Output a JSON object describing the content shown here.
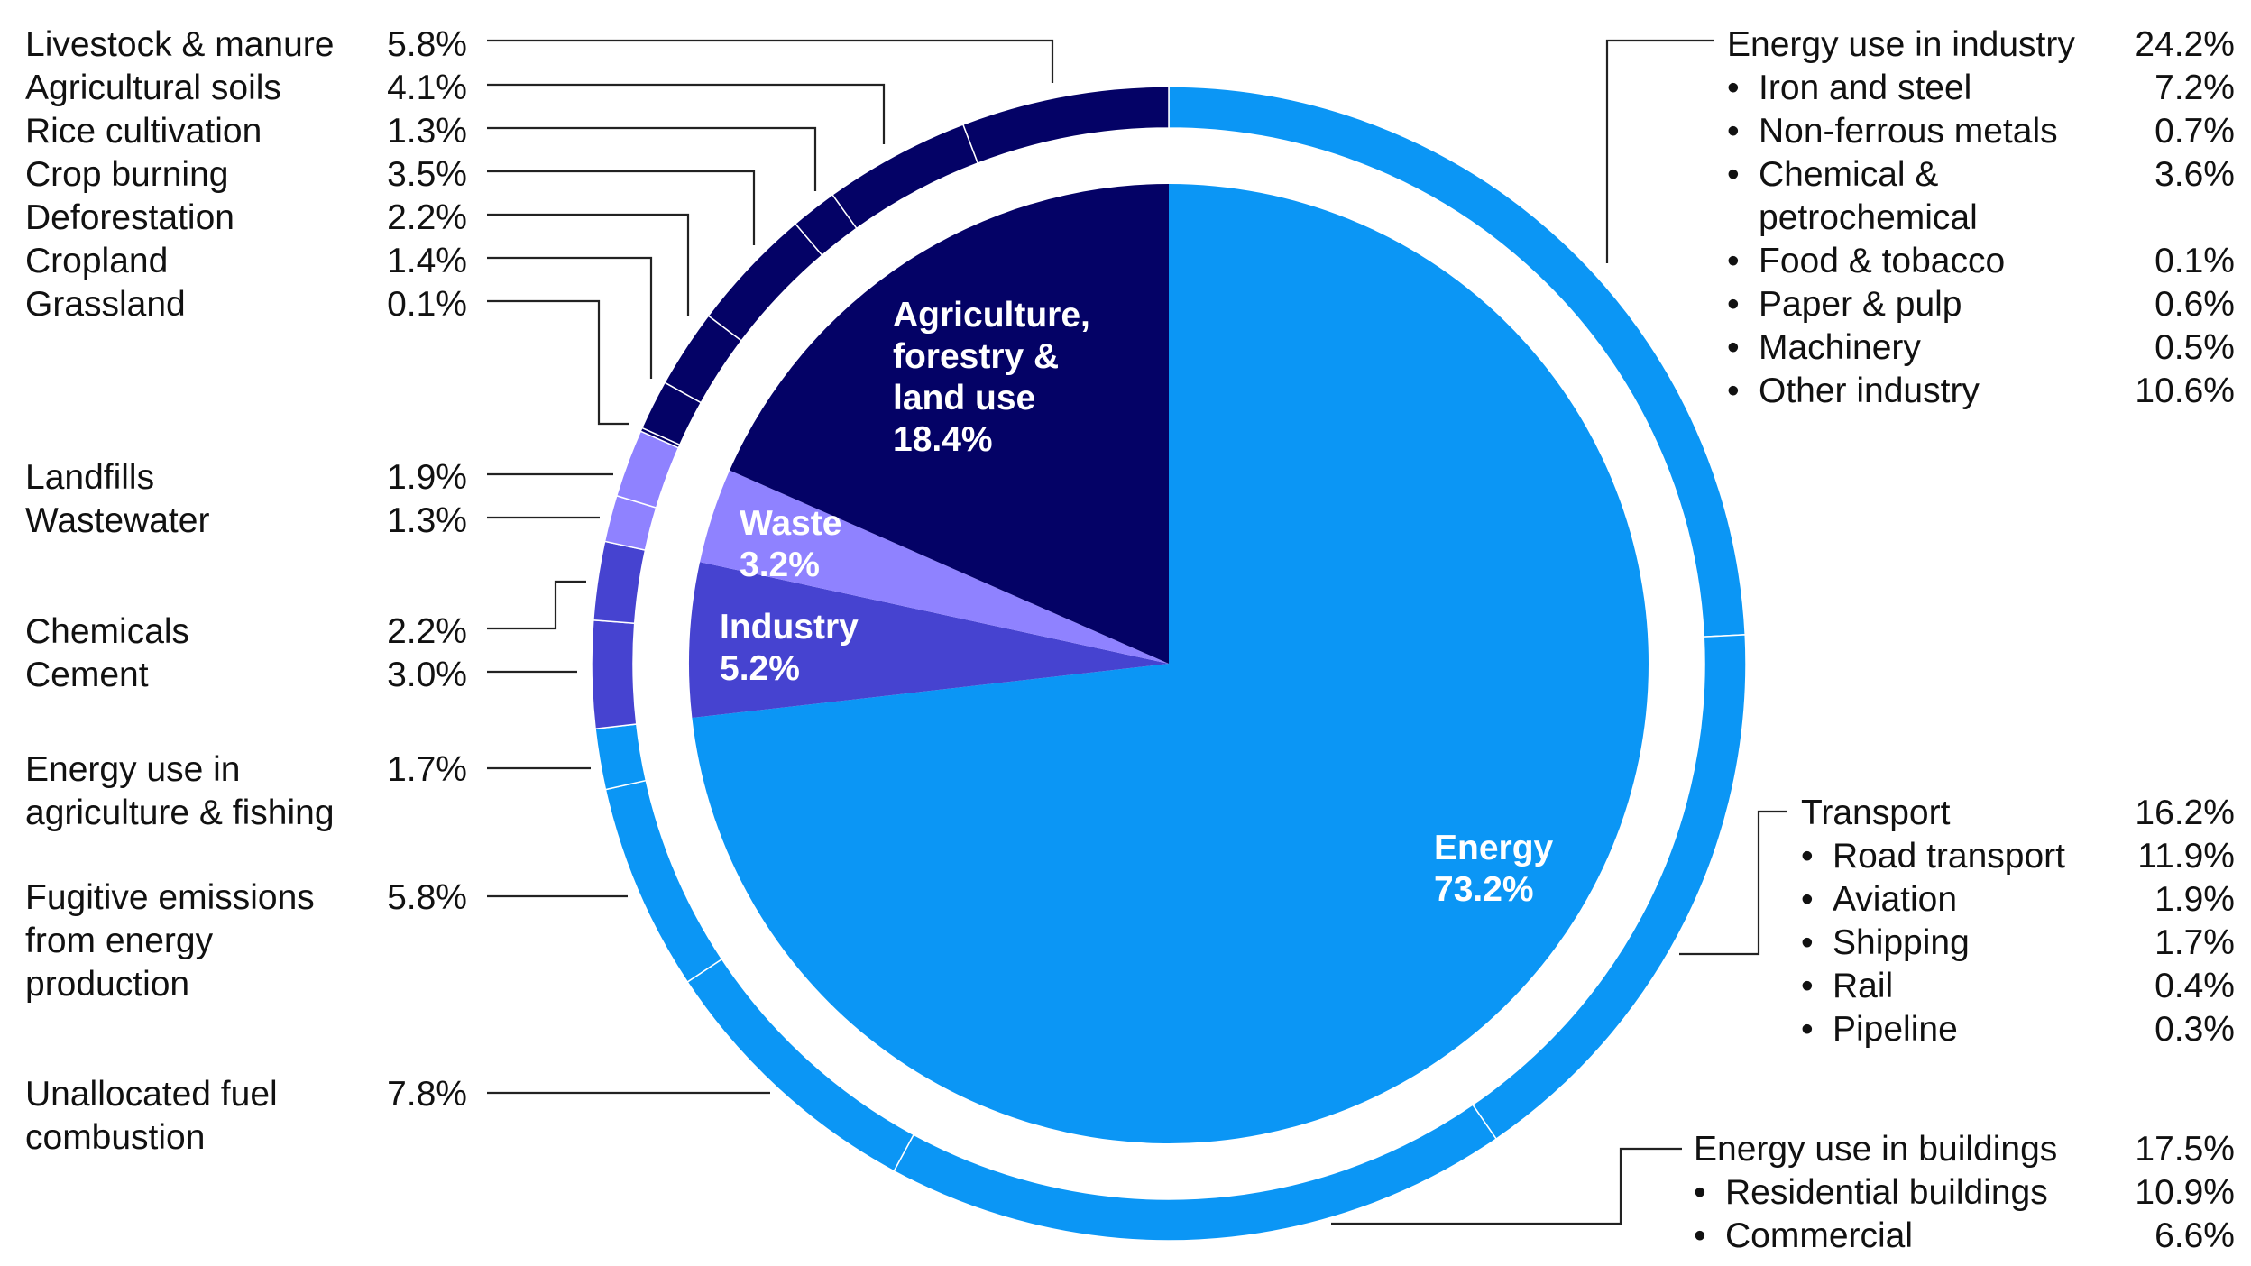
{
  "chart_data": {
    "type": "pie",
    "inner_ring": [
      {
        "name": "Energy",
        "value": 73.2,
        "label": "73.2%",
        "color": "#0B96F5"
      },
      {
        "name": "Industry",
        "value": 5.2,
        "label": "5.2%",
        "color": "#4643D0"
      },
      {
        "name": "Waste",
        "value": 3.2,
        "label": "3.2%",
        "color": "#8F82FF"
      },
      {
        "name": "Agriculture, forestry & land use",
        "value": 18.4,
        "label": "18.4%",
        "color": "#040266"
      }
    ],
    "outer_ring": [
      {
        "parent": "Energy",
        "name": "Energy use in industry",
        "value": 24.2,
        "label": "24.2%"
      },
      {
        "parent": "Energy",
        "name": "Transport",
        "value": 16.2,
        "label": "16.2%"
      },
      {
        "parent": "Energy",
        "name": "Energy use in buildings",
        "value": 17.5,
        "label": "17.5%"
      },
      {
        "parent": "Energy",
        "name": "Unallocated fuel combustion",
        "value": 7.8,
        "label": "7.8%"
      },
      {
        "parent": "Energy",
        "name": "Fugitive emissions from energy production",
        "value": 5.8,
        "label": "5.8%"
      },
      {
        "parent": "Energy",
        "name": "Energy use in agriculture & fishing",
        "value": 1.7,
        "label": "1.7%"
      },
      {
        "parent": "Industry",
        "name": "Cement",
        "value": 3.0,
        "label": "3.0%"
      },
      {
        "parent": "Industry",
        "name": "Chemicals",
        "value": 2.2,
        "label": "2.2%"
      },
      {
        "parent": "Waste",
        "name": "Wastewater",
        "value": 1.3,
        "label": "1.3%"
      },
      {
        "parent": "Waste",
        "name": "Landfills",
        "value": 1.9,
        "label": "1.9%"
      },
      {
        "parent": "Agriculture, forestry & land use",
        "name": "Grassland",
        "value": 0.1,
        "label": "0.1%"
      },
      {
        "parent": "Agriculture, forestry & land use",
        "name": "Cropland",
        "value": 1.4,
        "label": "1.4%"
      },
      {
        "parent": "Agriculture, forestry & land use",
        "name": "Deforestation",
        "value": 2.2,
        "label": "2.2%"
      },
      {
        "parent": "Agriculture, forestry & land use",
        "name": "Crop burning",
        "value": 3.5,
        "label": "3.5%"
      },
      {
        "parent": "Agriculture, forestry & land use",
        "name": "Rice cultivation",
        "value": 1.3,
        "label": "1.3%"
      },
      {
        "parent": "Agriculture, forestry & land use",
        "name": "Agricultural soils",
        "value": 4.1,
        "label": "4.1%"
      },
      {
        "parent": "Agriculture, forestry & land use",
        "name": "Livestock & manure",
        "value": 5.8,
        "label": "5.8%"
      }
    ],
    "breakdowns": {
      "industry": [
        {
          "name": "Iron and steel",
          "value": 7.2,
          "label": "7.2%"
        },
        {
          "name": "Non-ferrous metals",
          "value": 0.7,
          "label": "0.7%"
        },
        {
          "name": "Chemical & petrochemical",
          "value": 3.6,
          "label": "3.6%"
        },
        {
          "name": "Food & tobacco",
          "value": 0.1,
          "label": "0.1%"
        },
        {
          "name": "Paper & pulp",
          "value": 0.6,
          "label": "0.6%"
        },
        {
          "name": "Machinery",
          "value": 0.5,
          "label": "0.5%"
        },
        {
          "name": "Other industry",
          "value": 10.6,
          "label": "10.6%"
        }
      ],
      "transport": [
        {
          "name": "Road transport",
          "value": 11.9,
          "label": "11.9%"
        },
        {
          "name": "Aviation",
          "value": 1.9,
          "label": "1.9%"
        },
        {
          "name": "Shipping",
          "value": 1.7,
          "label": "1.7%"
        },
        {
          "name": "Rail",
          "value": 0.4,
          "label": "0.4%"
        },
        {
          "name": "Pipeline",
          "value": 0.3,
          "label": "0.3%"
        }
      ],
      "buildings": [
        {
          "name": "Residential buildings",
          "value": 10.9,
          "label": "10.9%"
        },
        {
          "name": "Commercial",
          "value": 6.6,
          "label": "6.6%"
        }
      ]
    }
  },
  "inner_labels": {
    "agriculture": [
      "Agriculture,",
      "forestry &",
      "land use",
      "18.4%"
    ],
    "waste": [
      "Waste",
      "3.2%"
    ],
    "industry": [
      "Industry",
      "5.2%"
    ],
    "energy": [
      "Energy",
      "73.2%"
    ]
  },
  "left_labels": {
    "livestock": {
      "name": "Livestock & manure",
      "pct": "5.8%"
    },
    "ag_soils": {
      "name": "Agricultural soils",
      "pct": "4.1%"
    },
    "rice": {
      "name": "Rice cultivation",
      "pct": "1.3%"
    },
    "crop_burning": {
      "name": "Crop burning",
      "pct": "3.5%"
    },
    "deforestation": {
      "name": "Deforestation",
      "pct": "2.2%"
    },
    "cropland": {
      "name": "Cropland",
      "pct": "1.4%"
    },
    "grassland": {
      "name": "Grassland",
      "pct": "0.1%"
    },
    "landfills": {
      "name": "Landfills",
      "pct": "1.9%"
    },
    "wastewater": {
      "name": "Wastewater",
      "pct": "1.3%"
    },
    "chemicals": {
      "name": "Chemicals",
      "pct": "2.2%"
    },
    "cement": {
      "name": "Cement",
      "pct": "3.0%"
    },
    "ag_energy": {
      "name1": "Energy use in",
      "name2": "agriculture & fishing",
      "pct": "1.7%"
    },
    "fugitive": {
      "name1": "Fugitive emissions",
      "name2": "from energy",
      "name3": "production",
      "pct": "5.8%"
    },
    "unallocated": {
      "name1": "Unallocated fuel",
      "name2": "combustion",
      "pct": "7.8%"
    }
  },
  "right_labels": {
    "industry": {
      "title": "Energy use in industry",
      "pct": "24.2%",
      "items": [
        {
          "name": "Iron and steel",
          "pct": "7.2%"
        },
        {
          "name": "Non-ferrous metals",
          "pct": "0.7%"
        },
        {
          "name": "Chemical &",
          "name2": "petrochemical",
          "pct": "3.6%"
        },
        {
          "name": "Food & tobacco",
          "pct": "0.1%"
        },
        {
          "name": "Paper & pulp",
          "pct": "0.6%"
        },
        {
          "name": "Machinery",
          "pct": "0.5%"
        },
        {
          "name": "Other industry",
          "pct": "10.6%"
        }
      ]
    },
    "transport": {
      "title": "Transport",
      "pct": "16.2%",
      "items": [
        {
          "name": "Road transport",
          "pct": "11.9%"
        },
        {
          "name": "Aviation",
          "pct": "1.9%"
        },
        {
          "name": "Shipping",
          "pct": "1.7%"
        },
        {
          "name": "Rail",
          "pct": "0.4%"
        },
        {
          "name": "Pipeline",
          "pct": "0.3%"
        }
      ]
    },
    "buildings": {
      "title": "Energy use in buildings",
      "pct": "17.5%",
      "items": [
        {
          "name": "Residential buildings",
          "pct": "10.9%"
        },
        {
          "name": "Commercial",
          "pct": "6.6%"
        }
      ]
    }
  },
  "bullet": "•",
  "colors": {
    "energy": "#0B96F5",
    "industry": "#4643D0",
    "waste": "#8F82FF",
    "agriculture": "#040266",
    "text": "#111111",
    "leader": "#222222"
  }
}
